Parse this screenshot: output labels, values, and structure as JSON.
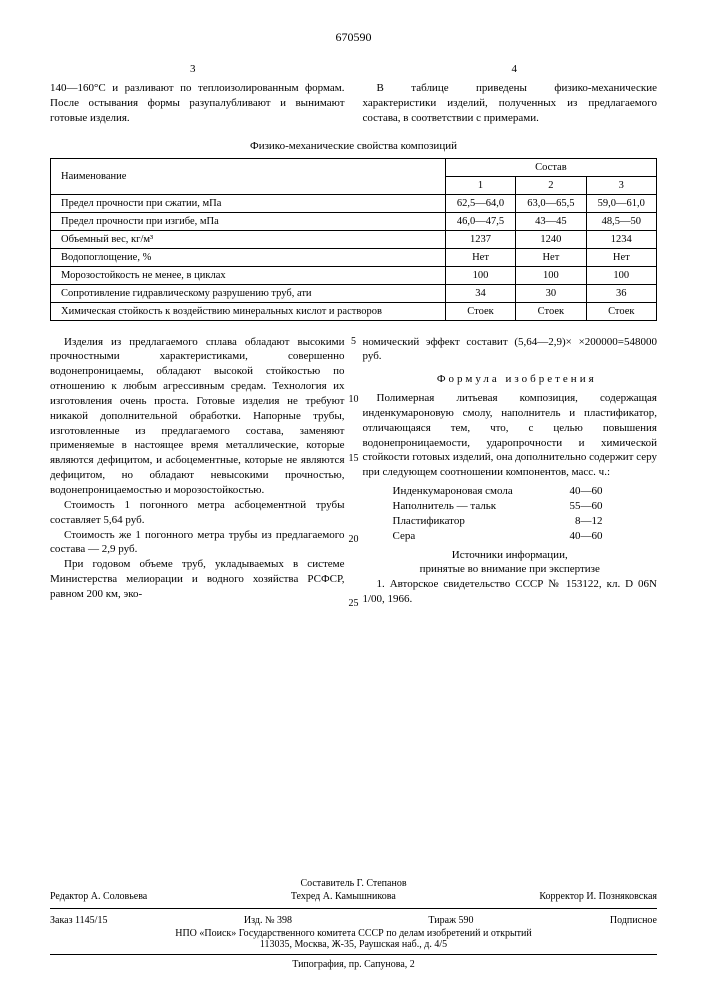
{
  "doc_number": "670590",
  "page_left": "3",
  "page_right": "4",
  "intro_left": "140—160°С и разливают по теплоизолированным формам. После остывания формы разупалубливают и вынимают готовые изделия.",
  "intro_right": "В таблице приведены физико-механические характеристики изделий, полученных из предлагаемого состава, в соответствии с примерами.",
  "table_caption": "Физико-механические свойства композиций",
  "table": {
    "header_name": "Наименование",
    "header_group": "Состав",
    "cols": [
      "1",
      "2",
      "3"
    ],
    "rows": [
      {
        "name": "Предел прочности при сжатии, мПа",
        "v": [
          "62,5—64,0",
          "63,0—65,5",
          "59,0—61,0"
        ]
      },
      {
        "name": "Предел прочности при изгибе, мПа",
        "v": [
          "46,0—47,5",
          "43—45",
          "48,5—50"
        ]
      },
      {
        "name": "Объемный вес, кг/м³",
        "v": [
          "1237",
          "1240",
          "1234"
        ]
      },
      {
        "name": "Водопоглощение, %",
        "v": [
          "Нет",
          "Нет",
          "Нет"
        ]
      },
      {
        "name": "Морозостойкость не менее, в циклах",
        "v": [
          "100",
          "100",
          "100"
        ]
      },
      {
        "name": "Сопротивление гидравлическому разрушению труб, ати",
        "v": [
          "34",
          "30",
          "36"
        ]
      },
      {
        "name": "Химическая стойкость к воздействию минеральных кислот и растворов",
        "v": [
          "Стоек",
          "Стоек",
          "Стоек"
        ]
      }
    ]
  },
  "body_left_p1": "Изделия из предлагаемого сплава обладают высокими прочностными характеристиками, совершенно водонепроницаемы, обладают высокой стойкостью по отношению к любым агрессивным средам. Технология их изготовления очень проста. Готовые изделия не требуют никакой дополнительной обработки. Напорные трубы, изготовленные из предлагаемого состава, заменяют применяемые в настоящее время металлические, которые являются дефицитом, и асбоцементные, которые не являются дефицитом, но обладают невысокими прочностью, водонепроницаемостью и морозостойкостью.",
  "body_left_p2": "Стоимость 1 погонного метра асбоцементной трубы составляет 5,64 руб.",
  "body_left_p3": "Стоимость же 1 погонного метра трубы из предлагаемого состава — 2,9 руб.",
  "body_left_p4": "При годовом объеме труб, укладываемых в системе Министерства мелиорации и водного хозяйства РСФСР, равном 200 км, эко-",
  "body_right_p1": "номический эффект составит (5,64—2,9)× ×200000=548000 руб.",
  "formula_title": "Формула изобретения",
  "body_right_p2": "Полимерная литьевая композиция, содержащая инденкумароновую смолу, наполнитель и пластификатор, отличающаяся тем, что, с целью повышения водонепроницаемости, ударопрочности и химической стойкости готовых изделий, она дополнительно содержит серу при следующем соотношении компонентов, масс. ч.:",
  "ingredients": [
    {
      "name": "Инденкумароновая смола",
      "val": "40—60"
    },
    {
      "name": "Наполнитель — тальк",
      "val": "55—60"
    },
    {
      "name": "Пластификатор",
      "val": "8—12"
    },
    {
      "name": "Сера",
      "val": "40—60"
    }
  ],
  "sources_title": "Источники информации,",
  "sources_sub": "принятые во внимание при экспертизе",
  "sources_item": "1. Авторское свидетельство СССР № 153122, кл. D 06N 1/00, 1966.",
  "line_nums": {
    "5": "5",
    "10": "10",
    "15": "15",
    "20": "20",
    "25": "25"
  },
  "footer": {
    "compiler": "Составитель Г. Степанов",
    "editor": "Редактор А. Соловьева",
    "techred": "Техред А. Камышникова",
    "corrector": "Корректор И. Позняковская",
    "order": "Заказ 1145/15",
    "izd": "Изд. № 398",
    "tirage": "Тираж 590",
    "subscribe": "Подписное",
    "org": "НПО «Поиск» Государственного комитета СССР по делам изобретений и открытий",
    "addr": "113035, Москва, Ж-35, Раушская наб., д. 4/5",
    "typo": "Типография, пр. Сапунова, 2"
  }
}
